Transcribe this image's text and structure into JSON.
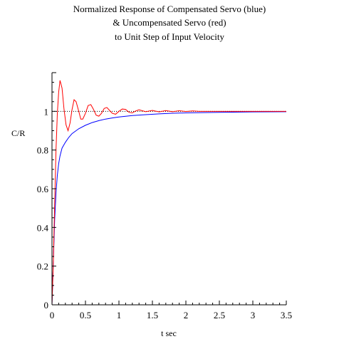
{
  "chart_data": {
    "type": "line",
    "title_lines": [
      "Normalized Response of Compensated Servo (blue)",
      "& Uncompensated Servo (red)",
      "to Unit Step of Input Velocity"
    ],
    "xlabel": "t sec",
    "ylabel": "C/R",
    "xlim": [
      0,
      3.5
    ],
    "ylim": [
      0,
      1.2
    ],
    "x_ticks": [
      0,
      0.5,
      1,
      1.5,
      2,
      2.5,
      3,
      3.5
    ],
    "x_tick_labels": [
      "0",
      "0.5",
      "1",
      "1.5",
      "2",
      "2.5",
      "3",
      "3.5"
    ],
    "y_ticks": [
      0,
      0.2,
      0.4,
      0.6,
      0.8,
      1
    ],
    "y_tick_labels": [
      "0",
      "0.2",
      "0.4",
      "0.6",
      "0.8",
      "1"
    ],
    "reference_line": {
      "y": 1,
      "style": "dotted",
      "color": "#000000"
    },
    "grid": false,
    "series": [
      {
        "color": "#0000ff",
        "x": [
          0,
          0.02,
          0.04,
          0.06,
          0.08,
          0.1,
          0.12,
          0.15,
          0.2,
          0.25,
          0.3,
          0.4,
          0.5,
          0.6,
          0.7,
          0.8,
          0.9,
          1.0,
          1.2,
          1.4,
          1.6,
          1.8,
          2.0,
          2.5,
          3.0,
          3.5
        ],
        "y": [
          0,
          0.22,
          0.44,
          0.58,
          0.67,
          0.73,
          0.77,
          0.81,
          0.84,
          0.865,
          0.885,
          0.91,
          0.928,
          0.942,
          0.952,
          0.96,
          0.966,
          0.971,
          0.978,
          0.983,
          0.987,
          0.99,
          0.992,
          0.995,
          0.997,
          0.998
        ]
      },
      {
        "color": "#ff0000",
        "x": [
          0,
          0.02,
          0.04,
          0.06,
          0.08,
          0.1,
          0.12,
          0.15,
          0.18,
          0.21,
          0.24,
          0.27,
          0.3,
          0.33,
          0.36,
          0.4,
          0.43,
          0.46,
          0.5,
          0.54,
          0.58,
          0.62,
          0.66,
          0.7,
          0.74,
          0.78,
          0.82,
          0.86,
          0.9,
          0.95,
          1.0,
          1.05,
          1.1,
          1.15,
          1.2,
          1.25,
          1.3,
          1.4,
          1.5,
          1.6,
          1.7,
          1.8,
          1.9,
          2.0,
          2.1,
          2.2,
          2.5,
          3.0,
          3.5
        ],
        "y": [
          0,
          0.22,
          0.52,
          0.8,
          0.99,
          1.1,
          1.16,
          1.12,
          1.01,
          0.93,
          0.9,
          0.94,
          1.01,
          1.06,
          1.05,
          1.0,
          0.96,
          0.96,
          0.99,
          1.03,
          1.035,
          1.01,
          0.98,
          0.975,
          0.99,
          1.015,
          1.02,
          1.005,
          0.99,
          0.985,
          1.0,
          1.012,
          1.01,
          0.995,
          0.992,
          1.002,
          1.008,
          0.998,
          1.005,
          0.997,
          1.004,
          0.998,
          1.003,
          0.999,
          1.002,
          1.0,
          1.0,
          1.0,
          1.0
        ]
      }
    ]
  }
}
